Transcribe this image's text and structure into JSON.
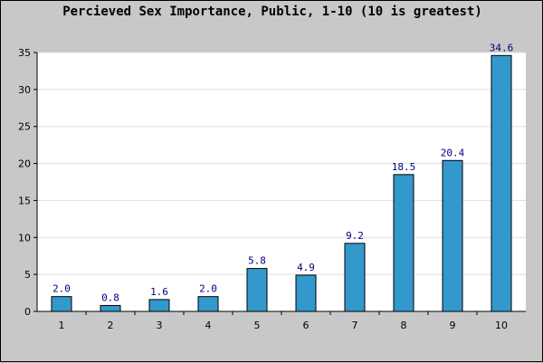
{
  "chart_data": {
    "type": "bar",
    "title": "Percieved Sex Importance, Public, 1-10 (10 is greatest)",
    "xlabel": "",
    "ylabel": "",
    "categories": [
      "1",
      "2",
      "3",
      "4",
      "5",
      "6",
      "7",
      "8",
      "9",
      "10"
    ],
    "values": [
      2.0,
      0.8,
      1.6,
      2.0,
      5.8,
      4.9,
      9.2,
      18.5,
      20.4,
      34.6
    ],
    "value_labels": [
      "2.0",
      "0.8",
      "1.6",
      "2.0",
      "5.8",
      "4.9",
      "9.2",
      "18.5",
      "20.4",
      "34.6"
    ],
    "ylim": [
      0,
      35
    ],
    "yticks": [
      0,
      5,
      10,
      15,
      20,
      25,
      30,
      35
    ],
    "grid": true,
    "legend": "none",
    "colors": {
      "bar": "#3399cc",
      "bar_outline": "#000000",
      "data_label": "#000080",
      "plot_background": "#ffffff",
      "page_background": "#c8c8c8",
      "gridline": "#dddddd"
    }
  }
}
